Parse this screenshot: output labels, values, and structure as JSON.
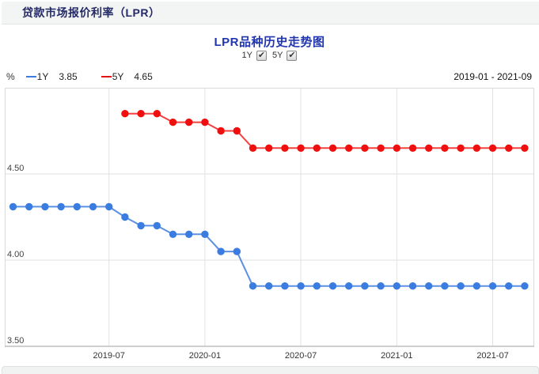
{
  "header": {
    "title": "贷款市场报价利率（LPR）"
  },
  "chart": {
    "title": "LPR品种历史走势图",
    "toggles": [
      {
        "label": "1Y",
        "checked": true
      },
      {
        "label": "5Y",
        "checked": true
      }
    ],
    "unit": "%",
    "legend": [
      {
        "label": "1Y",
        "value": "3.85",
        "color": "#3a7ce0"
      },
      {
        "label": "5Y",
        "value": "4.65",
        "color": "#e01414"
      }
    ],
    "date_range": "2019-01 - 2021-09"
  },
  "chart_data": {
    "type": "line",
    "title": "LPR品种历史走势图",
    "ylabel": "%",
    "grid": true,
    "legend_position": "top-left",
    "ylim": [
      3.5,
      5.0
    ],
    "x": [
      "2019-01",
      "2019-02",
      "2019-03",
      "2019-04",
      "2019-05",
      "2019-06",
      "2019-07",
      "2019-08",
      "2019-09",
      "2019-10",
      "2019-11",
      "2019-12",
      "2020-01",
      "2020-02",
      "2020-03",
      "2020-04",
      "2020-05",
      "2020-06",
      "2020-07",
      "2020-08",
      "2020-09",
      "2020-10",
      "2020-11",
      "2020-12",
      "2021-01",
      "2021-02",
      "2021-03",
      "2021-04",
      "2021-05",
      "2021-06",
      "2021-07",
      "2021-08",
      "2021-09"
    ],
    "series": [
      {
        "name": "1Y",
        "color": "#3a7ce0",
        "line_color": "#5b90e2",
        "values": [
          4.31,
          4.31,
          4.31,
          4.31,
          4.31,
          4.31,
          4.31,
          4.25,
          4.2,
          4.2,
          4.15,
          4.15,
          4.15,
          4.05,
          4.05,
          3.85,
          3.85,
          3.85,
          3.85,
          3.85,
          3.85,
          3.85,
          3.85,
          3.85,
          3.85,
          3.85,
          3.85,
          3.85,
          3.85,
          3.85,
          3.85,
          3.85,
          3.85
        ]
      },
      {
        "name": "5Y",
        "color": "#ef0f0f",
        "line_color": "#f44040",
        "values": [
          null,
          null,
          null,
          null,
          null,
          null,
          null,
          4.85,
          4.85,
          4.85,
          4.8,
          4.8,
          4.8,
          4.75,
          4.75,
          4.65,
          4.65,
          4.65,
          4.65,
          4.65,
          4.65,
          4.65,
          4.65,
          4.65,
          4.65,
          4.65,
          4.65,
          4.65,
          4.65,
          4.65,
          4.65,
          4.65,
          4.65
        ]
      }
    ],
    "xticks": [
      "2019-07",
      "2020-01",
      "2020-07",
      "2021-01",
      "2021-07"
    ],
    "yticks": [
      {
        "label": "4.50",
        "value": 4.5
      },
      {
        "label": "4.00",
        "value": 4.0
      },
      {
        "label": "3.50",
        "value": 3.5
      }
    ]
  }
}
